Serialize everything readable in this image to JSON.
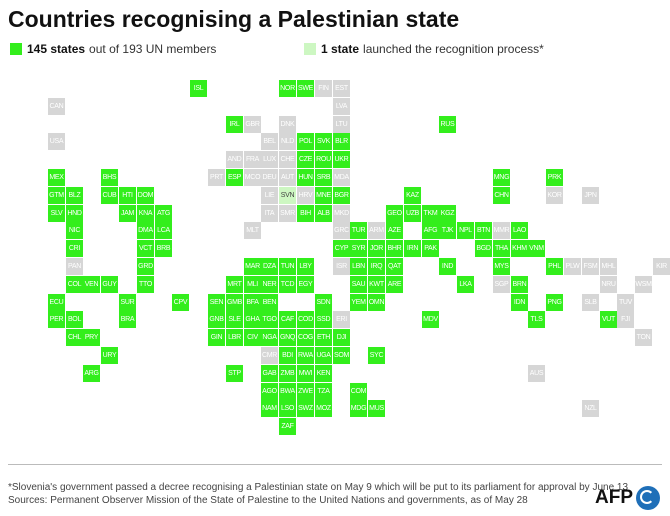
{
  "title": "Countries recognising a Palestinian state",
  "legend": {
    "recognised": {
      "count": "145 states",
      "text": "out of 193 UN members",
      "color": "#33ee1c"
    },
    "process": {
      "count": "1 state",
      "text": "launched the recognition process*",
      "color": "#cdf7c2"
    }
  },
  "footer": {
    "note": "*Slovenia's government passed a decree recognising a Palestinian state on May 9 which will be put to its parliament for approval by June 13",
    "source": "Sources: Permanent Observer Mission of the State of Palestine to the United Nations and governments, as of May 28"
  },
  "logo": "AFP",
  "tiles": [
    {
      "code": "ISL",
      "s": "r",
      "col": 9,
      "row": 0
    },
    {
      "code": "NOR",
      "s": "r",
      "col": 14,
      "row": 0
    },
    {
      "code": "SWE",
      "s": "r",
      "col": 15,
      "row": 0
    },
    {
      "code": "FIN",
      "s": "n",
      "col": 16,
      "row": 0
    },
    {
      "code": "EST",
      "s": "n",
      "col": 17,
      "row": 0
    },
    {
      "code": "CAN",
      "s": "n",
      "col": 1,
      "row": 1
    },
    {
      "code": "LVA",
      "s": "n",
      "col": 17,
      "row": 1
    },
    {
      "code": "IRL",
      "s": "r",
      "col": 11,
      "row": 2
    },
    {
      "code": "GBR",
      "s": "n",
      "col": 12,
      "row": 2
    },
    {
      "code": "DNK",
      "s": "n",
      "col": 14,
      "row": 2
    },
    {
      "code": "LTU",
      "s": "n",
      "col": 17,
      "row": 2
    },
    {
      "code": "RUS",
      "s": "r",
      "col": 23,
      "row": 2
    },
    {
      "code": "USA",
      "s": "n",
      "col": 1,
      "row": 3
    },
    {
      "code": "BEL",
      "s": "n",
      "col": 13,
      "row": 3
    },
    {
      "code": "NLD",
      "s": "n",
      "col": 14,
      "row": 3
    },
    {
      "code": "POL",
      "s": "r",
      "col": 15,
      "row": 3
    },
    {
      "code": "SVK",
      "s": "r",
      "col": 16,
      "row": 3
    },
    {
      "code": "BLR",
      "s": "r",
      "col": 17,
      "row": 3
    },
    {
      "code": "AND",
      "s": "n",
      "col": 11,
      "row": 4
    },
    {
      "code": "FRA",
      "s": "n",
      "col": 12,
      "row": 4
    },
    {
      "code": "LUX",
      "s": "n",
      "col": 13,
      "row": 4
    },
    {
      "code": "CHE",
      "s": "n",
      "col": 14,
      "row": 4
    },
    {
      "code": "CZE",
      "s": "r",
      "col": 15,
      "row": 4
    },
    {
      "code": "ROU",
      "s": "r",
      "col": 16,
      "row": 4
    },
    {
      "code": "UKR",
      "s": "r",
      "col": 17,
      "row": 4
    },
    {
      "code": "MEX",
      "s": "r",
      "col": 1,
      "row": 5
    },
    {
      "code": "BHS",
      "s": "r",
      "col": 4,
      "row": 5
    },
    {
      "code": "PRT",
      "s": "n",
      "col": 10,
      "row": 5
    },
    {
      "code": "ESP",
      "s": "r",
      "col": 11,
      "row": 5
    },
    {
      "code": "MCO",
      "s": "n",
      "col": 12,
      "row": 5
    },
    {
      "code": "DEU",
      "s": "n",
      "col": 13,
      "row": 5
    },
    {
      "code": "AUT",
      "s": "n",
      "col": 14,
      "row": 5
    },
    {
      "code": "HUN",
      "s": "r",
      "col": 15,
      "row": 5
    },
    {
      "code": "SRB",
      "s": "r",
      "col": 16,
      "row": 5
    },
    {
      "code": "MDA",
      "s": "n",
      "col": 17,
      "row": 5
    },
    {
      "code": "MNG",
      "s": "r",
      "col": 26,
      "row": 5
    },
    {
      "code": "PRK",
      "s": "r",
      "col": 29,
      "row": 5
    },
    {
      "code": "GTM",
      "s": "r",
      "col": 1,
      "row": 6
    },
    {
      "code": "BLZ",
      "s": "r",
      "col": 2,
      "row": 6
    },
    {
      "code": "CUB",
      "s": "r",
      "col": 4,
      "row": 6
    },
    {
      "code": "HTI",
      "s": "r",
      "col": 5,
      "row": 6
    },
    {
      "code": "DOM",
      "s": "r",
      "col": 6,
      "row": 6
    },
    {
      "code": "LIE",
      "s": "n",
      "col": 13,
      "row": 6
    },
    {
      "code": "SVN",
      "s": "p",
      "col": 14,
      "row": 6
    },
    {
      "code": "HRV",
      "s": "n",
      "col": 15,
      "row": 6
    },
    {
      "code": "MNE",
      "s": "r",
      "col": 16,
      "row": 6
    },
    {
      "code": "BGR",
      "s": "r",
      "col": 17,
      "row": 6
    },
    {
      "code": "KAZ",
      "s": "r",
      "col": 21,
      "row": 6
    },
    {
      "code": "CHN",
      "s": "r",
      "col": 26,
      "row": 6
    },
    {
      "code": "KOR",
      "s": "n",
      "col": 29,
      "row": 6
    },
    {
      "code": "JPN",
      "s": "n",
      "col": 31,
      "row": 6
    },
    {
      "code": "SLV",
      "s": "r",
      "col": 1,
      "row": 7
    },
    {
      "code": "HND",
      "s": "r",
      "col": 2,
      "row": 7
    },
    {
      "code": "JAM",
      "s": "r",
      "col": 5,
      "row": 7
    },
    {
      "code": "KNA",
      "s": "r",
      "col": 6,
      "row": 7
    },
    {
      "code": "ATG",
      "s": "r",
      "col": 7,
      "row": 7
    },
    {
      "code": "ITA",
      "s": "n",
      "col": 13,
      "row": 7
    },
    {
      "code": "SMR",
      "s": "n",
      "col": 14,
      "row": 7
    },
    {
      "code": "BIH",
      "s": "r",
      "col": 15,
      "row": 7
    },
    {
      "code": "ALB",
      "s": "r",
      "col": 16,
      "row": 7
    },
    {
      "code": "MKD",
      "s": "n",
      "col": 17,
      "row": 7
    },
    {
      "code": "GEO",
      "s": "r",
      "col": 20,
      "row": 7
    },
    {
      "code": "UZB",
      "s": "r",
      "col": 21,
      "row": 7
    },
    {
      "code": "TKM",
      "s": "r",
      "col": 22,
      "row": 7
    },
    {
      "code": "KGZ",
      "s": "r",
      "col": 23,
      "row": 7
    },
    {
      "code": "NIC",
      "s": "r",
      "col": 2,
      "row": 8
    },
    {
      "code": "DMA",
      "s": "r",
      "col": 6,
      "row": 8
    },
    {
      "code": "LCA",
      "s": "r",
      "col": 7,
      "row": 8
    },
    {
      "code": "MLT",
      "s": "n",
      "col": 12,
      "row": 8
    },
    {
      "code": "GRC",
      "s": "n",
      "col": 17,
      "row": 8
    },
    {
      "code": "TUR",
      "s": "r",
      "col": 18,
      "row": 8
    },
    {
      "code": "ARM",
      "s": "n",
      "col": 19,
      "row": 8
    },
    {
      "code": "AZE",
      "s": "r",
      "col": 20,
      "row": 8
    },
    {
      "code": "AFG",
      "s": "r",
      "col": 22,
      "row": 8
    },
    {
      "code": "TJK",
      "s": "r",
      "col": 23,
      "row": 8
    },
    {
      "code": "NPL",
      "s": "r",
      "col": 24,
      "row": 8
    },
    {
      "code": "BTN",
      "s": "r",
      "col": 25,
      "row": 8
    },
    {
      "code": "MMR",
      "s": "n",
      "col": 26,
      "row": 8
    },
    {
      "code": "LAO",
      "s": "r",
      "col": 27,
      "row": 8
    },
    {
      "code": "CRI",
      "s": "r",
      "col": 2,
      "row": 9
    },
    {
      "code": "VCT",
      "s": "r",
      "col": 6,
      "row": 9
    },
    {
      "code": "BRB",
      "s": "r",
      "col": 7,
      "row": 9
    },
    {
      "code": "CYP",
      "s": "r",
      "col": 17,
      "row": 9
    },
    {
      "code": "SYR",
      "s": "r",
      "col": 18,
      "row": 9
    },
    {
      "code": "JOR",
      "s": "r",
      "col": 19,
      "row": 9
    },
    {
      "code": "BHR",
      "s": "r",
      "col": 20,
      "row": 9
    },
    {
      "code": "IRN",
      "s": "r",
      "col": 21,
      "row": 9
    },
    {
      "code": "PAK",
      "s": "r",
      "col": 22,
      "row": 9
    },
    {
      "code": "BGD",
      "s": "r",
      "col": 25,
      "row": 9
    },
    {
      "code": "THA",
      "s": "r",
      "col": 26,
      "row": 9
    },
    {
      "code": "KHM",
      "s": "r",
      "col": 27,
      "row": 9
    },
    {
      "code": "VNM",
      "s": "r",
      "col": 28,
      "row": 9
    },
    {
      "code": "PAN",
      "s": "n",
      "col": 2,
      "row": 10
    },
    {
      "code": "GRD",
      "s": "r",
      "col": 6,
      "row": 10
    },
    {
      "code": "MAR",
      "s": "r",
      "col": 12,
      "row": 10
    },
    {
      "code": "DZA",
      "s": "r",
      "col": 13,
      "row": 10
    },
    {
      "code": "TUN",
      "s": "r",
      "col": 14,
      "row": 10
    },
    {
      "code": "LBY",
      "s": "r",
      "col": 15,
      "row": 10
    },
    {
      "code": "ISR",
      "s": "n",
      "col": 17,
      "row": 10
    },
    {
      "code": "LBN",
      "s": "r",
      "col": 18,
      "row": 10
    },
    {
      "code": "IRQ",
      "s": "r",
      "col": 19,
      "row": 10
    },
    {
      "code": "QAT",
      "s": "r",
      "col": 20,
      "row": 10
    },
    {
      "code": "IND",
      "s": "r",
      "col": 23,
      "row": 10
    },
    {
      "code": "MYS",
      "s": "r",
      "col": 26,
      "row": 10
    },
    {
      "code": "PHL",
      "s": "r",
      "col": 29,
      "row": 10
    },
    {
      "code": "PLW",
      "s": "n",
      "col": 30,
      "row": 10
    },
    {
      "code": "FSM",
      "s": "n",
      "col": 31,
      "row": 10
    },
    {
      "code": "MHL",
      "s": "n",
      "col": 32,
      "row": 10
    },
    {
      "code": "KIR",
      "s": "n",
      "col": 35,
      "row": 10
    },
    {
      "code": "COL",
      "s": "r",
      "col": 2,
      "row": 11
    },
    {
      "code": "VEN",
      "s": "r",
      "col": 3,
      "row": 11
    },
    {
      "code": "GUY",
      "s": "r",
      "col": 4,
      "row": 11
    },
    {
      "code": "TTO",
      "s": "r",
      "col": 6,
      "row": 11
    },
    {
      "code": "MRT",
      "s": "r",
      "col": 11,
      "row": 11
    },
    {
      "code": "MLI",
      "s": "r",
      "col": 12,
      "row": 11
    },
    {
      "code": "NER",
      "s": "r",
      "col": 13,
      "row": 11
    },
    {
      "code": "TCD",
      "s": "r",
      "col": 14,
      "row": 11
    },
    {
      "code": "EGY",
      "s": "r",
      "col": 15,
      "row": 11
    },
    {
      "code": "SAU",
      "s": "r",
      "col": 18,
      "row": 11
    },
    {
      "code": "KWT",
      "s": "r",
      "col": 19,
      "row": 11
    },
    {
      "code": "ARE",
      "s": "r",
      "col": 20,
      "row": 11
    },
    {
      "code": "LKA",
      "s": "r",
      "col": 24,
      "row": 11
    },
    {
      "code": "SGP",
      "s": "n",
      "col": 26,
      "row": 11
    },
    {
      "code": "BRN",
      "s": "r",
      "col": 27,
      "row": 11
    },
    {
      "code": "NRU",
      "s": "n",
      "col": 32,
      "row": 11
    },
    {
      "code": "WSM",
      "s": "n",
      "col": 34,
      "row": 11
    },
    {
      "code": "ECU",
      "s": "r",
      "col": 1,
      "row": 12
    },
    {
      "code": "SUR",
      "s": "r",
      "col": 5,
      "row": 12
    },
    {
      "code": "CPV",
      "s": "r",
      "col": 8,
      "row": 12
    },
    {
      "code": "SEN",
      "s": "r",
      "col": 10,
      "row": 12
    },
    {
      "code": "GMB",
      "s": "r",
      "col": 11,
      "row": 12
    },
    {
      "code": "BFA",
      "s": "r",
      "col": 12,
      "row": 12
    },
    {
      "code": "BEN",
      "s": "r",
      "col": 13,
      "row": 12
    },
    {
      "code": "SDN",
      "s": "r",
      "col": 16,
      "row": 12
    },
    {
      "code": "YEM",
      "s": "r",
      "col": 18,
      "row": 12
    },
    {
      "code": "OMN",
      "s": "r",
      "col": 19,
      "row": 12
    },
    {
      "code": "IDN",
      "s": "r",
      "col": 27,
      "row": 12
    },
    {
      "code": "PNG",
      "s": "r",
      "col": 29,
      "row": 12
    },
    {
      "code": "SLB",
      "s": "n",
      "col": 31,
      "row": 12
    },
    {
      "code": "TUV",
      "s": "n",
      "col": 33,
      "row": 12
    },
    {
      "code": "PER",
      "s": "r",
      "col": 1,
      "row": 13
    },
    {
      "code": "BOL",
      "s": "r",
      "col": 2,
      "row": 13
    },
    {
      "code": "BRA",
      "s": "r",
      "col": 5,
      "row": 13
    },
    {
      "code": "GNB",
      "s": "r",
      "col": 10,
      "row": 13
    },
    {
      "code": "SLE",
      "s": "r",
      "col": 11,
      "row": 13
    },
    {
      "code": "GHA",
      "s": "r",
      "col": 12,
      "row": 13
    },
    {
      "code": "TGO",
      "s": "r",
      "col": 13,
      "row": 13
    },
    {
      "code": "CAF",
      "s": "r",
      "col": 14,
      "row": 13
    },
    {
      "code": "COD",
      "s": "r",
      "col": 15,
      "row": 13
    },
    {
      "code": "SSD",
      "s": "r",
      "col": 16,
      "row": 13
    },
    {
      "code": "ERI",
      "s": "n",
      "col": 17,
      "row": 13
    },
    {
      "code": "MDV",
      "s": "r",
      "col": 22,
      "row": 13
    },
    {
      "code": "TLS",
      "s": "r",
      "col": 28,
      "row": 13
    },
    {
      "code": "VUT",
      "s": "r",
      "col": 32,
      "row": 13
    },
    {
      "code": "FJI",
      "s": "n",
      "col": 33,
      "row": 13
    },
    {
      "code": "CHL",
      "s": "r",
      "col": 2,
      "row": 14
    },
    {
      "code": "PRY",
      "s": "r",
      "col": 3,
      "row": 14
    },
    {
      "code": "GIN",
      "s": "r",
      "col": 10,
      "row": 14
    },
    {
      "code": "LBR",
      "s": "r",
      "col": 11,
      "row": 14
    },
    {
      "code": "CIV",
      "s": "r",
      "col": 12,
      "row": 14
    },
    {
      "code": "NGA",
      "s": "r",
      "col": 13,
      "row": 14
    },
    {
      "code": "GNQ",
      "s": "r",
      "col": 14,
      "row": 14
    },
    {
      "code": "COG",
      "s": "r",
      "col": 15,
      "row": 14
    },
    {
      "code": "ETH",
      "s": "r",
      "col": 16,
      "row": 14
    },
    {
      "code": "DJI",
      "s": "r",
      "col": 17,
      "row": 14
    },
    {
      "code": "TON",
      "s": "n",
      "col": 34,
      "row": 14
    },
    {
      "code": "URY",
      "s": "r",
      "col": 4,
      "row": 15
    },
    {
      "code": "CMR",
      "s": "n",
      "col": 13,
      "row": 15
    },
    {
      "code": "BDI",
      "s": "r",
      "col": 14,
      "row": 15
    },
    {
      "code": "RWA",
      "s": "r",
      "col": 15,
      "row": 15
    },
    {
      "code": "UGA",
      "s": "r",
      "col": 16,
      "row": 15
    },
    {
      "code": "SOM",
      "s": "r",
      "col": 17,
      "row": 15
    },
    {
      "code": "SYC",
      "s": "r",
      "col": 19,
      "row": 15
    },
    {
      "code": "ARG",
      "s": "r",
      "col": 3,
      "row": 16
    },
    {
      "code": "STP",
      "s": "r",
      "col": 11,
      "row": 16
    },
    {
      "code": "GAB",
      "s": "r",
      "col": 13,
      "row": 16
    },
    {
      "code": "ZMB",
      "s": "r",
      "col": 14,
      "row": 16
    },
    {
      "code": "MWI",
      "s": "r",
      "col": 15,
      "row": 16
    },
    {
      "code": "KEN",
      "s": "r",
      "col": 16,
      "row": 16
    },
    {
      "code": "AUS",
      "s": "n",
      "col": 28,
      "row": 16
    },
    {
      "code": "AGO",
      "s": "r",
      "col": 13,
      "row": 17
    },
    {
      "code": "BWA",
      "s": "r",
      "col": 14,
      "row": 17
    },
    {
      "code": "ZWE",
      "s": "r",
      "col": 15,
      "row": 17
    },
    {
      "code": "TZA",
      "s": "r",
      "col": 16,
      "row": 17
    },
    {
      "code": "COM",
      "s": "r",
      "col": 18,
      "row": 17
    },
    {
      "code": "NAM",
      "s": "r",
      "col": 13,
      "row": 18
    },
    {
      "code": "LSO",
      "s": "r",
      "col": 14,
      "row": 18
    },
    {
      "code": "SWZ",
      "s": "r",
      "col": 15,
      "row": 18
    },
    {
      "code": "MOZ",
      "s": "r",
      "col": 16,
      "row": 18
    },
    {
      "code": "MDG",
      "s": "r",
      "col": 18,
      "row": 18
    },
    {
      "code": "MUS",
      "s": "r",
      "col": 19,
      "row": 18
    },
    {
      "code": "NZL",
      "s": "n",
      "col": 31,
      "row": 18
    },
    {
      "code": "ZAF",
      "s": "r",
      "col": 14,
      "row": 19
    }
  ]
}
